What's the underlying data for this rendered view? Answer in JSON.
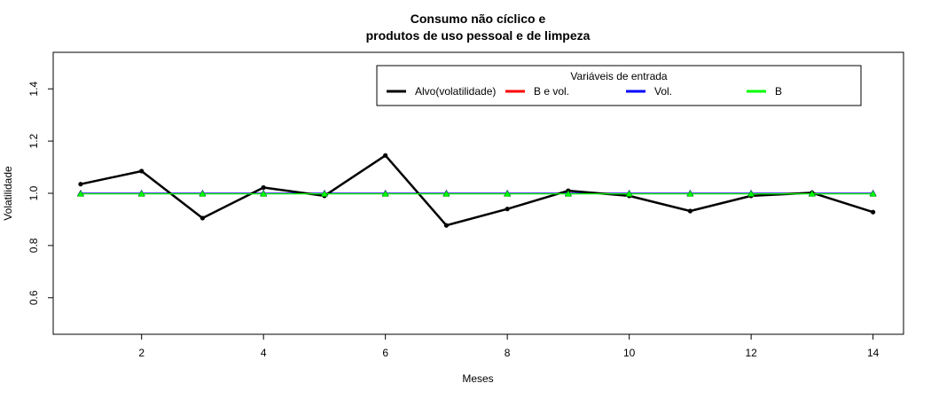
{
  "chart_data": {
    "type": "line",
    "title_line1": "Consumo não cíclico e",
    "title_line2": "produtos de uso pessoal e de limpeza",
    "xlabel": "Meses",
    "ylabel": "Volatilidade",
    "x": [
      1,
      2,
      3,
      4,
      5,
      6,
      7,
      8,
      9,
      10,
      11,
      12,
      13,
      14
    ],
    "xlim": [
      0.55,
      14.5
    ],
    "ylim": [
      0.46,
      1.54
    ],
    "xticks": [
      2,
      4,
      6,
      8,
      10,
      12,
      14
    ],
    "yticks": [
      0.6,
      0.8,
      1.0,
      1.2,
      1.4
    ],
    "ytick_labels": [
      "0.6",
      "0.8",
      "1.0",
      "1.2",
      "1.4"
    ],
    "grid": false,
    "legend": {
      "title": "Variáveis de entrada",
      "placement": "top-right",
      "entries": [
        {
          "label": "Alvo(volatilidade)",
          "color": "#000000"
        },
        {
          "label": "B e vol.",
          "color": "#ff0000"
        },
        {
          "label": "Vol.",
          "color": "#0000ff"
        },
        {
          "label": "B",
          "color": "#00ff00"
        }
      ]
    },
    "series": [
      {
        "name": "Alvo(volatilidade)",
        "color": "#000000",
        "values": [
          1.035,
          1.085,
          0.905,
          1.022,
          0.99,
          1.145,
          0.877,
          0.94,
          1.01,
          0.99,
          0.932,
          0.99,
          1.002,
          0.928
        ]
      },
      {
        "name": "B e vol.",
        "color": "#ff0000",
        "values": [
          1.0,
          1.0,
          1.0,
          1.0,
          1.0,
          1.0,
          1.0,
          1.0,
          1.0,
          1.0,
          1.0,
          1.0,
          1.0,
          1.0
        ]
      },
      {
        "name": "Vol.",
        "color": "#0000ff",
        "values": [
          1.0,
          1.0,
          1.0,
          1.0,
          1.0,
          1.0,
          1.0,
          1.0,
          1.0,
          1.0,
          1.0,
          1.0,
          1.0,
          1.0
        ]
      },
      {
        "name": "B",
        "color": "#00ff00",
        "values": [
          0.998,
          0.998,
          0.998,
          0.998,
          0.998,
          0.998,
          0.998,
          0.998,
          0.998,
          0.998,
          0.998,
          0.998,
          0.998,
          0.998
        ]
      }
    ]
  }
}
